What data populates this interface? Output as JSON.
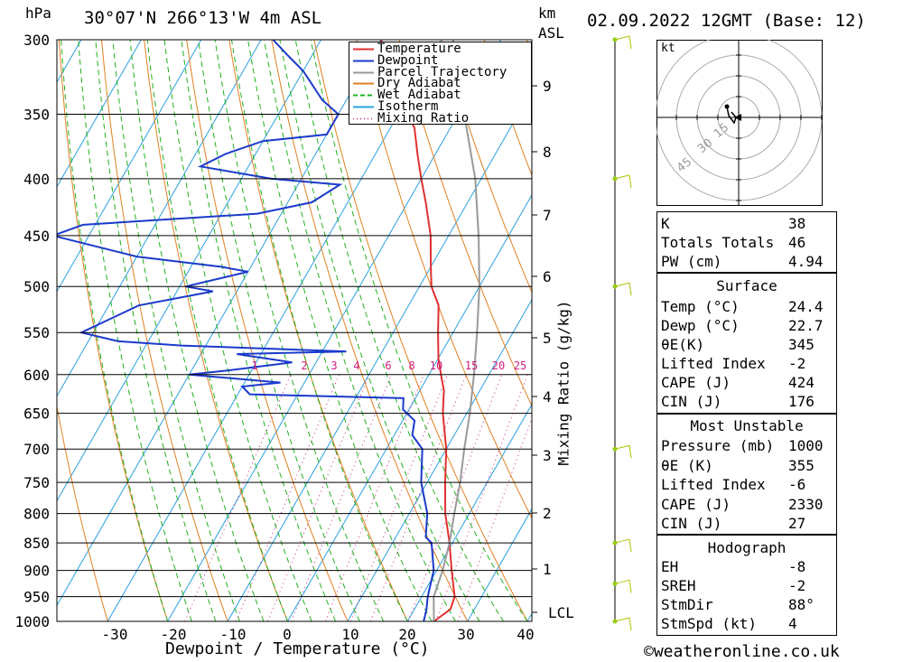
{
  "header": {
    "location": "30°07'N 266°13'W 4m ASL",
    "datetime": "02.09.2022 12GMT (Base: 12)",
    "unit_left": "hPa",
    "unit_right_km": "km",
    "unit_right_asl": "ASL"
  },
  "chart_data": {
    "type": "skew-t",
    "pressure_levels": [
      300,
      350,
      400,
      450,
      500,
      550,
      600,
      650,
      700,
      750,
      800,
      850,
      900,
      950,
      1000
    ],
    "temperature_ticks": [
      -30,
      -20,
      -10,
      0,
      10,
      20,
      30,
      40
    ],
    "xlabel": "Dewpoint / Temperature (°C)",
    "ylabel_right": "Mixing Ratio (g/kg)",
    "km_ticks": [
      "9",
      "8",
      "7",
      "6",
      "5",
      "4",
      "3",
      "2",
      "1",
      "LCL"
    ],
    "mixing_ratio_labels": [
      "1",
      "2",
      "3",
      "4",
      "6",
      "8",
      "10",
      "15",
      "20",
      "25"
    ],
    "legend": [
      "Temperature",
      "Dewpoint",
      "Parcel Trajectory",
      "Dry Adiabat",
      "Wet Adiabat",
      "Isotherm",
      "Mixing Ratio"
    ],
    "series": [
      {
        "name": "Temperature",
        "color": "#e03030",
        "values": [
          [
            1000,
            24.4
          ],
          [
            975,
            26
          ],
          [
            950,
            25.5
          ],
          [
            900,
            22.5
          ],
          [
            850,
            19.5
          ],
          [
            800,
            16
          ],
          [
            750,
            13
          ],
          [
            700,
            10
          ],
          [
            650,
            6
          ],
          [
            620,
            4
          ],
          [
            600,
            2
          ],
          [
            580,
            0
          ],
          [
            550,
            -2.5
          ],
          [
            520,
            -5
          ],
          [
            500,
            -8
          ],
          [
            480,
            -10
          ],
          [
            450,
            -13
          ],
          [
            420,
            -17
          ],
          [
            400,
            -20
          ],
          [
            380,
            -23
          ],
          [
            360,
            -26
          ],
          [
            340,
            -31
          ],
          [
            320,
            -35
          ],
          [
            300,
            -40
          ]
        ]
      },
      {
        "name": "Dewpoint",
        "color": "#1a3acc",
        "values": [
          [
            1000,
            22.7
          ],
          [
            975,
            22
          ],
          [
            950,
            21
          ],
          [
            900,
            19.5
          ],
          [
            850,
            16.5
          ],
          [
            840,
            15
          ],
          [
            800,
            13
          ],
          [
            750,
            9
          ],
          [
            700,
            6
          ],
          [
            680,
            3
          ],
          [
            660,
            2
          ],
          [
            645,
            -1
          ],
          [
            630,
            -2
          ],
          [
            625,
            -28
          ],
          [
            615,
            -30
          ],
          [
            610,
            -24
          ],
          [
            600,
            -40
          ],
          [
            595,
            -34
          ],
          [
            585,
            -24
          ],
          [
            575,
            -34
          ],
          [
            572,
            -16
          ],
          [
            565,
            -44
          ],
          [
            560,
            -55
          ],
          [
            550,
            -62
          ],
          [
            520,
            -55
          ],
          [
            505,
            -44
          ],
          [
            500,
            -49
          ],
          [
            485,
            -40
          ],
          [
            480,
            -45
          ],
          [
            470,
            -60
          ],
          [
            450,
            -76
          ],
          [
            440,
            -72
          ],
          [
            430,
            -44
          ],
          [
            420,
            -36
          ],
          [
            405,
            -33
          ],
          [
            400,
            -45
          ],
          [
            390,
            -58
          ],
          [
            380,
            -55
          ],
          [
            370,
            -50
          ],
          [
            365,
            -40
          ],
          [
            360,
            -40
          ],
          [
            350,
            -40
          ],
          [
            340,
            -44
          ],
          [
            320,
            -50
          ],
          [
            310,
            -54
          ],
          [
            300,
            -58
          ]
        ]
      },
      {
        "name": "Parcel Trajectory",
        "color": "#999999",
        "values": [
          [
            1000,
            24.4
          ],
          [
            950,
            22
          ],
          [
            900,
            21
          ],
          [
            850,
            19.5
          ],
          [
            800,
            17.5
          ],
          [
            750,
            15.5
          ],
          [
            700,
            13
          ],
          [
            650,
            10.5
          ],
          [
            600,
            7.5
          ],
          [
            550,
            4
          ],
          [
            500,
            0
          ],
          [
            450,
            -5
          ],
          [
            400,
            -11
          ],
          [
            350,
            -19
          ],
          [
            300,
            -28
          ]
        ]
      }
    ],
    "wind_barbs": [
      {
        "p": 300,
        "kt": 5
      },
      {
        "p": 400,
        "kt": 10
      },
      {
        "p": 500,
        "kt": 15
      },
      {
        "p": 700,
        "kt": 10
      },
      {
        "p": 850,
        "kt": 10
      },
      {
        "p": 925,
        "kt": 5
      },
      {
        "p": 1000,
        "kt": 15
      }
    ]
  },
  "hodograph": {
    "unit": "kt",
    "ring_labels": [
      "15",
      "30",
      "45"
    ]
  },
  "indices": {
    "k": {
      "label": "K",
      "value": "38"
    },
    "tt": {
      "label": "Totals Totals",
      "value": "46"
    },
    "pw": {
      "label": "PW (cm)",
      "value": "4.94"
    }
  },
  "surface": {
    "title": "Surface",
    "temp": {
      "label": "Temp (°C)",
      "value": "24.4"
    },
    "dewp": {
      "label": "Dewp (°C)",
      "value": "22.7"
    },
    "thetae": {
      "label": "θE(K)",
      "value": "345"
    },
    "li": {
      "label": "Lifted Index",
      "value": "-2"
    },
    "cape": {
      "label": "CAPE (J)",
      "value": "424"
    },
    "cin": {
      "label": "CIN (J)",
      "value": "176"
    }
  },
  "most_unstable": {
    "title": "Most Unstable",
    "pressure": {
      "label": "Pressure (mb)",
      "value": "1000"
    },
    "thetae": {
      "label": "θE (K)",
      "value": "355"
    },
    "li": {
      "label": "Lifted Index",
      "value": "-6"
    },
    "cape": {
      "label": "CAPE (J)",
      "value": "2330"
    },
    "cin": {
      "label": "CIN (J)",
      "value": "27"
    }
  },
  "hodo_stats": {
    "title": "Hodograph",
    "eh": {
      "label": "EH",
      "value": "-8"
    },
    "sreh": {
      "label": "SREH",
      "value": "-2"
    },
    "stmdir": {
      "label": "StmDir",
      "value": "88°"
    },
    "stmspd": {
      "label": "StmSpd (kt)",
      "value": "4"
    }
  },
  "footer": {
    "credit": "©weatheronline.co.uk"
  },
  "colors": {
    "temperature": "#e03030",
    "dewpoint": "#1a3acc",
    "parcel": "#999999",
    "dry_adiabat": "#e08020",
    "wet_adiabat": "#20b020",
    "isotherm": "#2aa0e0",
    "mixing_ratio": "#d02080"
  }
}
